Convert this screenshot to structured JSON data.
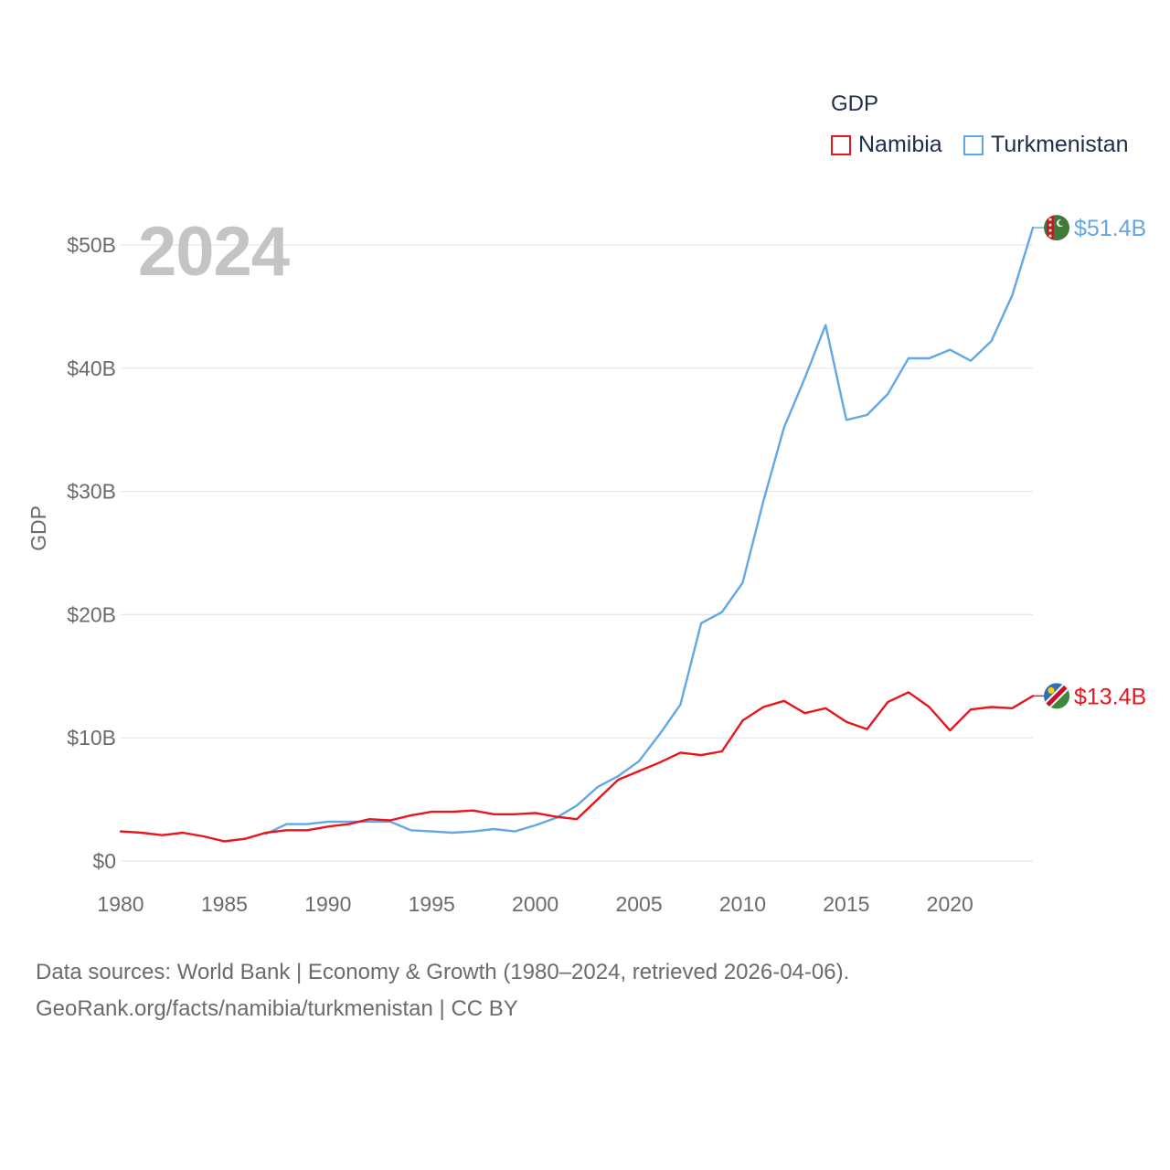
{
  "colors": {
    "namibia": "#e8161c",
    "turkmenistan": "#62a7e6",
    "grid": "#e6e6e6",
    "text": "#6b6b6b",
    "legend_text": "#1f2d4d"
  },
  "legend": {
    "title": "GDP",
    "items": [
      {
        "label": "Namibia",
        "color": "#e8161c"
      },
      {
        "label": "Turkmenistan",
        "color": "#62a7e6"
      }
    ]
  },
  "year_watermark": "2024",
  "footer": {
    "line1": "Data sources: World Bank | Economy & Growth (1980–2024, retrieved 2026-04-06).",
    "line2": "GeoRank.org/facts/namibia/turkmenistan | CC BY"
  },
  "chart_data": {
    "type": "line",
    "title": "GDP",
    "xlabel": "",
    "ylabel": "GDP",
    "xlim": [
      1980,
      2024
    ],
    "ylim": [
      0,
      50
    ],
    "y_unit": "billion USD",
    "x_ticks": [
      1980,
      1985,
      1990,
      1995,
      2000,
      2005,
      2010,
      2015,
      2020
    ],
    "x_tick_labels": [
      "1980",
      "1985",
      "1990",
      "1995",
      "2000",
      "2005",
      "2010",
      "2015",
      "2020"
    ],
    "y_ticks": [
      0,
      10,
      20,
      30,
      40,
      50
    ],
    "y_tick_labels": [
      "$0",
      "$10B",
      "$20B",
      "$30B",
      "$40B",
      "$50B"
    ],
    "grid": true,
    "legend_position": "top-right",
    "series": [
      {
        "name": "Namibia",
        "color": "#e8161c",
        "end_label": "$13.4B",
        "x": [
          1980,
          1981,
          1982,
          1983,
          1984,
          1985,
          1986,
          1987,
          1988,
          1989,
          1990,
          1991,
          1992,
          1993,
          1994,
          1995,
          1996,
          1997,
          1998,
          1999,
          2000,
          2001,
          2002,
          2003,
          2004,
          2005,
          2006,
          2007,
          2008,
          2009,
          2010,
          2011,
          2012,
          2013,
          2014,
          2015,
          2016,
          2017,
          2018,
          2019,
          2020,
          2021,
          2022,
          2023,
          2024
        ],
        "values": [
          2.4,
          2.3,
          2.1,
          2.3,
          2.0,
          1.6,
          1.8,
          2.3,
          2.5,
          2.5,
          2.8,
          3.0,
          3.4,
          3.3,
          3.7,
          4.0,
          4.0,
          4.1,
          3.8,
          3.8,
          3.9,
          3.6,
          3.4,
          5.0,
          6.6,
          7.3,
          8.0,
          8.8,
          8.6,
          8.9,
          11.4,
          12.5,
          13.0,
          12.0,
          12.4,
          11.3,
          10.7,
          12.9,
          13.7,
          12.5,
          10.6,
          12.3,
          12.5,
          12.4,
          13.4
        ]
      },
      {
        "name": "Turkmenistan",
        "color": "#62a7e6",
        "end_label": "$51.4B",
        "x": [
          1987,
          1988,
          1989,
          1990,
          1991,
          1992,
          1993,
          1994,
          1995,
          1996,
          1997,
          1998,
          1999,
          2000,
          2001,
          2002,
          2003,
          2004,
          2005,
          2006,
          2007,
          2008,
          2009,
          2010,
          2011,
          2012,
          2013,
          2014,
          2015,
          2016,
          2017,
          2018,
          2019,
          2020,
          2021,
          2022,
          2023,
          2024
        ],
        "values": [
          2.2,
          3.0,
          3.0,
          3.2,
          3.2,
          3.2,
          3.2,
          2.5,
          2.4,
          2.3,
          2.4,
          2.6,
          2.4,
          2.9,
          3.5,
          4.5,
          6.0,
          6.9,
          8.1,
          10.3,
          12.7,
          19.3,
          20.2,
          22.6,
          29.2,
          35.2,
          39.2,
          43.5,
          35.8,
          36.2,
          37.9,
          40.8,
          40.8,
          41.5,
          40.6,
          42.2,
          45.9,
          51.4
        ]
      }
    ]
  }
}
